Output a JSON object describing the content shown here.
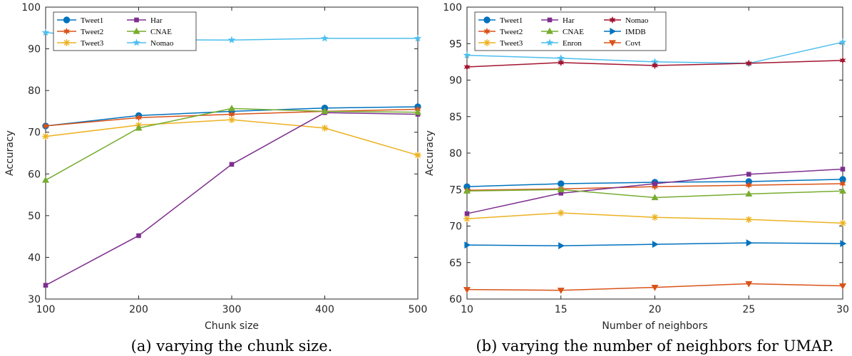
{
  "chart_data": [
    {
      "type": "line",
      "xlabel": "Chunk size",
      "ylabel": "Accuracy",
      "xlim": [
        100,
        500
      ],
      "ylim": [
        30,
        100
      ],
      "xticks": [
        100,
        200,
        300,
        400,
        500
      ],
      "yticks": [
        30,
        40,
        50,
        60,
        70,
        80,
        90,
        100
      ],
      "x": [
        100,
        200,
        300,
        400,
        500
      ],
      "legend_location": "top-left",
      "legend_columns": 2,
      "caption": "(a) varying the chunk size.",
      "series": [
        {
          "name": "Tweet1",
          "color": "#0072BD",
          "marker": "circle",
          "values": [
            71.5,
            74.0,
            75.0,
            75.8,
            76.1
          ]
        },
        {
          "name": "Tweet2",
          "color": "#D95319",
          "marker": "star6",
          "values": [
            71.5,
            73.5,
            74.3,
            75.0,
            75.5
          ]
        },
        {
          "name": "Tweet3",
          "color": "#EDB120",
          "marker": "asterisk",
          "values": [
            69.0,
            71.7,
            73.0,
            71.0,
            64.5
          ]
        },
        {
          "name": "Har",
          "color": "#7E2F8E",
          "marker": "square",
          "values": [
            33.3,
            45.2,
            62.3,
            74.7,
            74.3
          ]
        },
        {
          "name": "CNAE",
          "color": "#77AC30",
          "marker": "triangle-up",
          "values": [
            58.5,
            71.0,
            75.7,
            75.0,
            74.8
          ]
        },
        {
          "name": "Nomao",
          "color": "#4DBEEE",
          "marker": "star5",
          "values": [
            93.9,
            92.2,
            92.1,
            92.5,
            92.5
          ]
        }
      ]
    },
    {
      "type": "line",
      "xlabel": "Number of neighbors",
      "ylabel": "Accuracy",
      "xlim": [
        10,
        30
      ],
      "ylim": [
        60,
        100
      ],
      "xticks": [
        10,
        15,
        20,
        25,
        30
      ],
      "yticks": [
        60,
        65,
        70,
        75,
        80,
        85,
        90,
        95,
        100
      ],
      "x": [
        10,
        15,
        20,
        25,
        30
      ],
      "legend_location": "top-left",
      "legend_columns": 3,
      "caption": "(b) varying the number of neighbors for UMAP.",
      "series": [
        {
          "name": "Tweet1",
          "color": "#0072BD",
          "marker": "circle",
          "values": [
            75.4,
            75.8,
            76.0,
            76.1,
            76.4
          ]
        },
        {
          "name": "Tweet2",
          "color": "#D95319",
          "marker": "star6",
          "values": [
            74.9,
            75.1,
            75.4,
            75.6,
            75.8
          ]
        },
        {
          "name": "Tweet3",
          "color": "#EDB120",
          "marker": "asterisk",
          "values": [
            71.0,
            71.8,
            71.2,
            70.9,
            70.4
          ]
        },
        {
          "name": "Har",
          "color": "#7E2F8E",
          "marker": "square",
          "values": [
            71.7,
            74.5,
            75.8,
            77.1,
            77.8
          ]
        },
        {
          "name": "CNAE",
          "color": "#77AC30",
          "marker": "triangle-up",
          "values": [
            74.8,
            75.0,
            73.9,
            74.4,
            74.8
          ]
        },
        {
          "name": "Enron",
          "color": "#4DBEEE",
          "marker": "star5",
          "values": [
            93.4,
            93.0,
            92.5,
            92.3,
            95.2
          ]
        },
        {
          "name": "Nomao",
          "color": "#A2142F",
          "marker": "star6",
          "values": [
            91.8,
            92.4,
            92.0,
            92.3,
            92.7
          ]
        },
        {
          "name": "IMDB",
          "color": "#0072BD",
          "marker": "triangle-right",
          "values": [
            67.4,
            67.3,
            67.5,
            67.7,
            67.6
          ]
        },
        {
          "name": "Covt",
          "color": "#D95319",
          "marker": "triangle-down",
          "values": [
            61.3,
            61.2,
            61.6,
            62.1,
            61.8
          ]
        }
      ]
    }
  ]
}
